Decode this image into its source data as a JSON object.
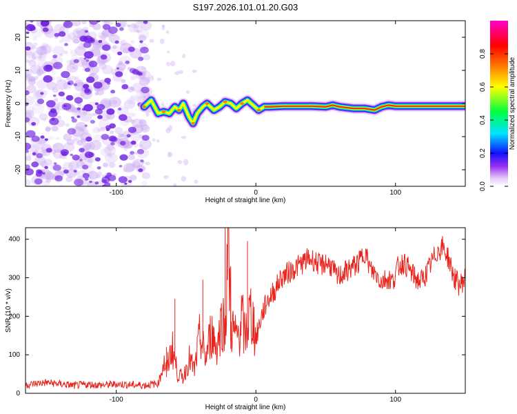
{
  "title": "S197.2026.101.01.20.G03",
  "chart_data": [
    {
      "type": "heatmap",
      "title": "S197.2026.101.01.20.G03",
      "xlabel": "Height of straight line (km)",
      "ylabel": "Frequency (Hz)",
      "xlim": [
        -165,
        150
      ],
      "ylim": [
        -25,
        25
      ],
      "xticks": [
        -100,
        0,
        100
      ],
      "xtick_labels": [
        "-100",
        "0",
        "100"
      ],
      "yticks": [
        -20,
        -10,
        0,
        10,
        20
      ],
      "ytick_labels": [
        "-20",
        "-10",
        "0",
        "10",
        "20"
      ],
      "description_regions": {
        "noise_region_x": [
          -165,
          -78
        ],
        "transition_region_x": [
          -78,
          5
        ],
        "carrier_region_x": [
          5,
          150
        ]
      },
      "carrier_track": {
        "x": [
          -80,
          -75,
          -70,
          -66,
          -62,
          -58,
          -55,
          -52,
          -48,
          -45,
          -42,
          -38,
          -35,
          -30,
          -26,
          -22,
          -18,
          -14,
          -10,
          -6,
          -2,
          2,
          6,
          10,
          20,
          40,
          50,
          55,
          60,
          70,
          78,
          85,
          90,
          95,
          100,
          110,
          120,
          130,
          140,
          150
        ],
        "freq_hz": [
          -1,
          1,
          -3,
          -2.5,
          -3,
          -1,
          -2,
          0,
          -4,
          -6,
          -3,
          -1,
          0,
          -2,
          -1,
          0.5,
          0,
          -1.5,
          0,
          1,
          -0.5,
          -2,
          -1,
          -1,
          -0.8,
          -0.8,
          -1,
          -0.5,
          -1,
          -1.5,
          -1.5,
          -2,
          -1,
          -0.5,
          -0.8,
          -0.8,
          -0.8,
          -0.8,
          -0.8,
          -0.8
        ]
      },
      "colorbar": {
        "label": "Normalized spectral amplitude",
        "range": [
          0.0,
          1.0
        ],
        "ticks": [
          0.0,
          0.2,
          0.4,
          0.6,
          0.8
        ],
        "tick_labels": [
          "0.0",
          "0.2",
          "0.4",
          "0.6",
          "0.8"
        ],
        "colors": [
          "#ffffff",
          "#9b2ff0",
          "#1010ff",
          "#00e5ff",
          "#00ff40",
          "#ffff00",
          "#ff8000",
          "#ff0000",
          "#ff00c8"
        ]
      }
    },
    {
      "type": "line",
      "xlabel": "Height of straight line (km)",
      "ylabel": "SNR (10 * v/v)",
      "xlim": [
        -165,
        150
      ],
      "ylim": [
        0,
        430
      ],
      "xticks": [
        -100,
        0,
        100
      ],
      "xtick_labels": [
        "-100",
        "0",
        "100"
      ],
      "yticks": [
        0,
        100,
        200,
        300,
        400
      ],
      "ytick_labels": [
        "0",
        "100",
        "200",
        "300",
        "400"
      ],
      "color": "#e8231b",
      "series": [
        {
          "name": "SNR",
          "x": [
            -165,
            -150,
            -140,
            -130,
            -120,
            -110,
            -100,
            -90,
            -80,
            -70,
            -66,
            -64,
            -60,
            -56,
            -52,
            -48,
            -44,
            -40,
            -36,
            -32,
            -28,
            -24,
            -22,
            -20,
            -18,
            -16,
            -14,
            -12,
            -10,
            -8,
            -6,
            -4,
            -2,
            0,
            2,
            4,
            6,
            8,
            10,
            14,
            18,
            22,
            26,
            30,
            34,
            38,
            42,
            46,
            50,
            54,
            58,
            62,
            66,
            70,
            74,
            78,
            82,
            86,
            90,
            94,
            98,
            102,
            106,
            110,
            114,
            118,
            122,
            126,
            130,
            134,
            138,
            142,
            146,
            150
          ],
          "values": [
            22,
            28,
            24,
            20,
            23,
            21,
            24,
            22,
            21,
            25,
            80,
            60,
            120,
            50,
            40,
            90,
            60,
            150,
            90,
            160,
            120,
            200,
            150,
            430,
            180,
            160,
            140,
            160,
            200,
            140,
            180,
            210,
            190,
            140,
            170,
            200,
            220,
            240,
            250,
            270,
            300,
            310,
            320,
            330,
            340,
            350,
            345,
            330,
            340,
            330,
            300,
            310,
            320,
            330,
            340,
            370,
            320,
            310,
            290,
            300,
            290,
            330,
            340,
            320,
            300,
            290,
            310,
            340,
            370,
            380,
            350,
            300,
            280,
            300
          ]
        }
      ],
      "spikes": [
        {
          "x": -64,
          "y": 120
        },
        {
          "x": -58,
          "y": 245
        },
        {
          "x": -38,
          "y": 295
        },
        {
          "x": -22,
          "y": 430
        },
        {
          "x": -18,
          "y": 330
        },
        {
          "x": -6,
          "y": 395
        }
      ]
    }
  ]
}
